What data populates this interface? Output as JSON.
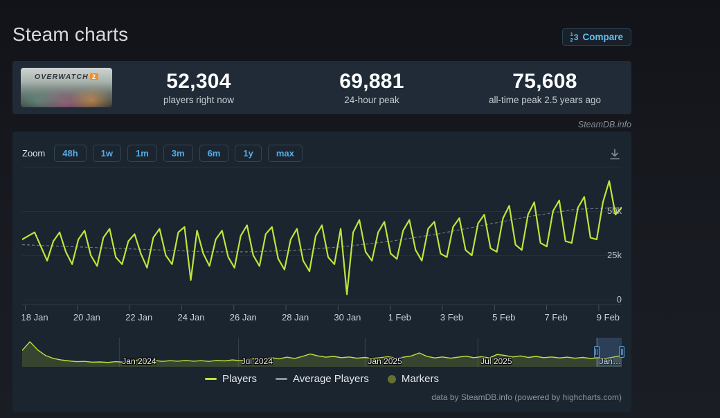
{
  "page": {
    "title": "Steam charts",
    "watermark": "SteamDB.info",
    "credit": "data by SteamDB.info (powered by highcharts.com)"
  },
  "header": {
    "compare_label": "Compare"
  },
  "stats": {
    "capsule": {
      "title": "OVERWATCH",
      "suffix": "2"
    },
    "items": [
      {
        "value": "52,304",
        "label": "players right now"
      },
      {
        "value": "69,881",
        "label": "24-hour peak"
      },
      {
        "value": "75,608",
        "label": "all-time peak 2.5 years ago"
      }
    ]
  },
  "toolbar": {
    "zoom_label": "Zoom",
    "ranges": [
      "48h",
      "1w",
      "1m",
      "3m",
      "6m",
      "1y",
      "max"
    ]
  },
  "legend": [
    {
      "label": "Players",
      "swatch": "line",
      "color": "#bfe43b"
    },
    {
      "label": "Average Players",
      "swatch": "line",
      "color": "#8d959c"
    },
    {
      "label": "Markers",
      "swatch": "circle",
      "color": "#64702f"
    }
  ],
  "colors": {
    "accent_blue": "#66c0f4",
    "players_line": "#bfe43b",
    "average_line": "#8d959c",
    "marker_dot": "#64702f",
    "grid": "#27313d",
    "axis_line": "#2f3a46",
    "tick": "#45505b",
    "nav_fill": "rgba(168,198,50,0.20)",
    "nav_grid": "#39434d",
    "panel_bg": "#1b2530",
    "stats_bg": "#202b37"
  },
  "chart_data": {
    "type": "line",
    "unit": "players",
    "ylim": [
      0,
      75000
    ],
    "yticks": [
      {
        "label": "50k",
        "value": 50
      },
      {
        "label": "25k",
        "value": 25
      },
      {
        "label": "0",
        "value": 0
      }
    ],
    "x_range_days": 23,
    "xticks": [
      {
        "label": "18 Jan",
        "day": 0
      },
      {
        "label": "20 Jan",
        "day": 2
      },
      {
        "label": "22 Jan",
        "day": 4
      },
      {
        "label": "24 Jan",
        "day": 6
      },
      {
        "label": "26 Jan",
        "day": 8
      },
      {
        "label": "28 Jan",
        "day": 10
      },
      {
        "label": "30 Jan",
        "day": 12
      },
      {
        "label": "1 Feb",
        "day": 14
      },
      {
        "label": "3 Feb",
        "day": 16
      },
      {
        "label": "5 Feb",
        "day": 18
      },
      {
        "label": "7 Feb",
        "day": 20
      },
      {
        "label": "9 Feb",
        "day": 22
      }
    ],
    "series": [
      {
        "name": "Players",
        "color": "#bfe43b",
        "units": "thousands_of_players",
        "values": [
          34,
          36,
          38,
          30,
          22,
          33,
          38,
          27,
          20,
          34,
          39,
          25,
          19,
          35,
          40,
          24,
          20,
          33,
          37,
          26,
          18,
          35,
          40,
          25,
          20,
          38,
          41,
          11,
          39,
          26,
          19,
          34,
          39,
          24,
          18,
          36,
          42,
          25,
          19,
          37,
          41,
          23,
          17,
          34,
          40,
          22,
          16,
          36,
          42,
          24,
          20,
          40,
          3,
          38,
          45,
          27,
          22,
          38,
          44,
          26,
          23,
          39,
          45,
          28,
          22,
          40,
          44,
          26,
          24,
          41,
          46,
          28,
          25,
          43,
          48,
          29,
          27,
          46,
          53,
          31,
          28,
          48,
          55,
          32,
          30,
          50,
          56,
          33,
          32,
          52,
          58,
          35,
          34,
          55,
          67,
          48,
          52
        ]
      },
      {
        "name": "Average Players",
        "color": "#8d959c",
        "dashed": true,
        "units": "thousands_of_players",
        "values": [
          31,
          30,
          29,
          28,
          27,
          27,
          28,
          30,
          33,
          37,
          42,
          47,
          51,
          52
        ]
      }
    ],
    "navigator": {
      "labels": [
        {
          "text": "Jan 2024",
          "pos": 0.162
        },
        {
          "text": "Jul 2024",
          "pos": 0.361
        },
        {
          "text": "Jan 2025",
          "pos": 0.572
        },
        {
          "text": "Jul 2025",
          "pos": 0.76
        },
        {
          "text": "Jan 2026",
          "pos": 0.958
        }
      ],
      "values_norm": [
        0.6,
        0.95,
        0.62,
        0.4,
        0.28,
        0.22,
        0.18,
        0.15,
        0.16,
        0.13,
        0.14,
        0.12,
        0.15,
        0.13,
        0.18,
        0.22,
        0.17,
        0.2,
        0.16,
        0.19,
        0.17,
        0.2,
        0.17,
        0.19,
        0.16,
        0.2,
        0.18,
        0.22,
        0.19,
        0.24,
        0.28,
        0.23,
        0.31,
        0.26,
        0.33,
        0.28,
        0.36,
        0.46,
        0.38,
        0.33,
        0.36,
        0.31,
        0.34,
        0.29,
        0.32,
        0.28,
        0.31,
        0.35,
        0.29,
        0.33,
        0.38,
        0.5,
        0.36,
        0.3,
        0.34,
        0.29,
        0.33,
        0.37,
        0.31,
        0.35,
        0.3,
        0.44,
        0.4,
        0.34,
        0.38,
        0.32,
        0.36,
        0.31,
        0.34,
        0.3,
        0.33,
        0.29,
        0.32,
        0.28,
        0.31,
        0.28,
        0.34,
        0.4
      ],
      "selection": [
        0.958,
        1.0
      ]
    }
  }
}
